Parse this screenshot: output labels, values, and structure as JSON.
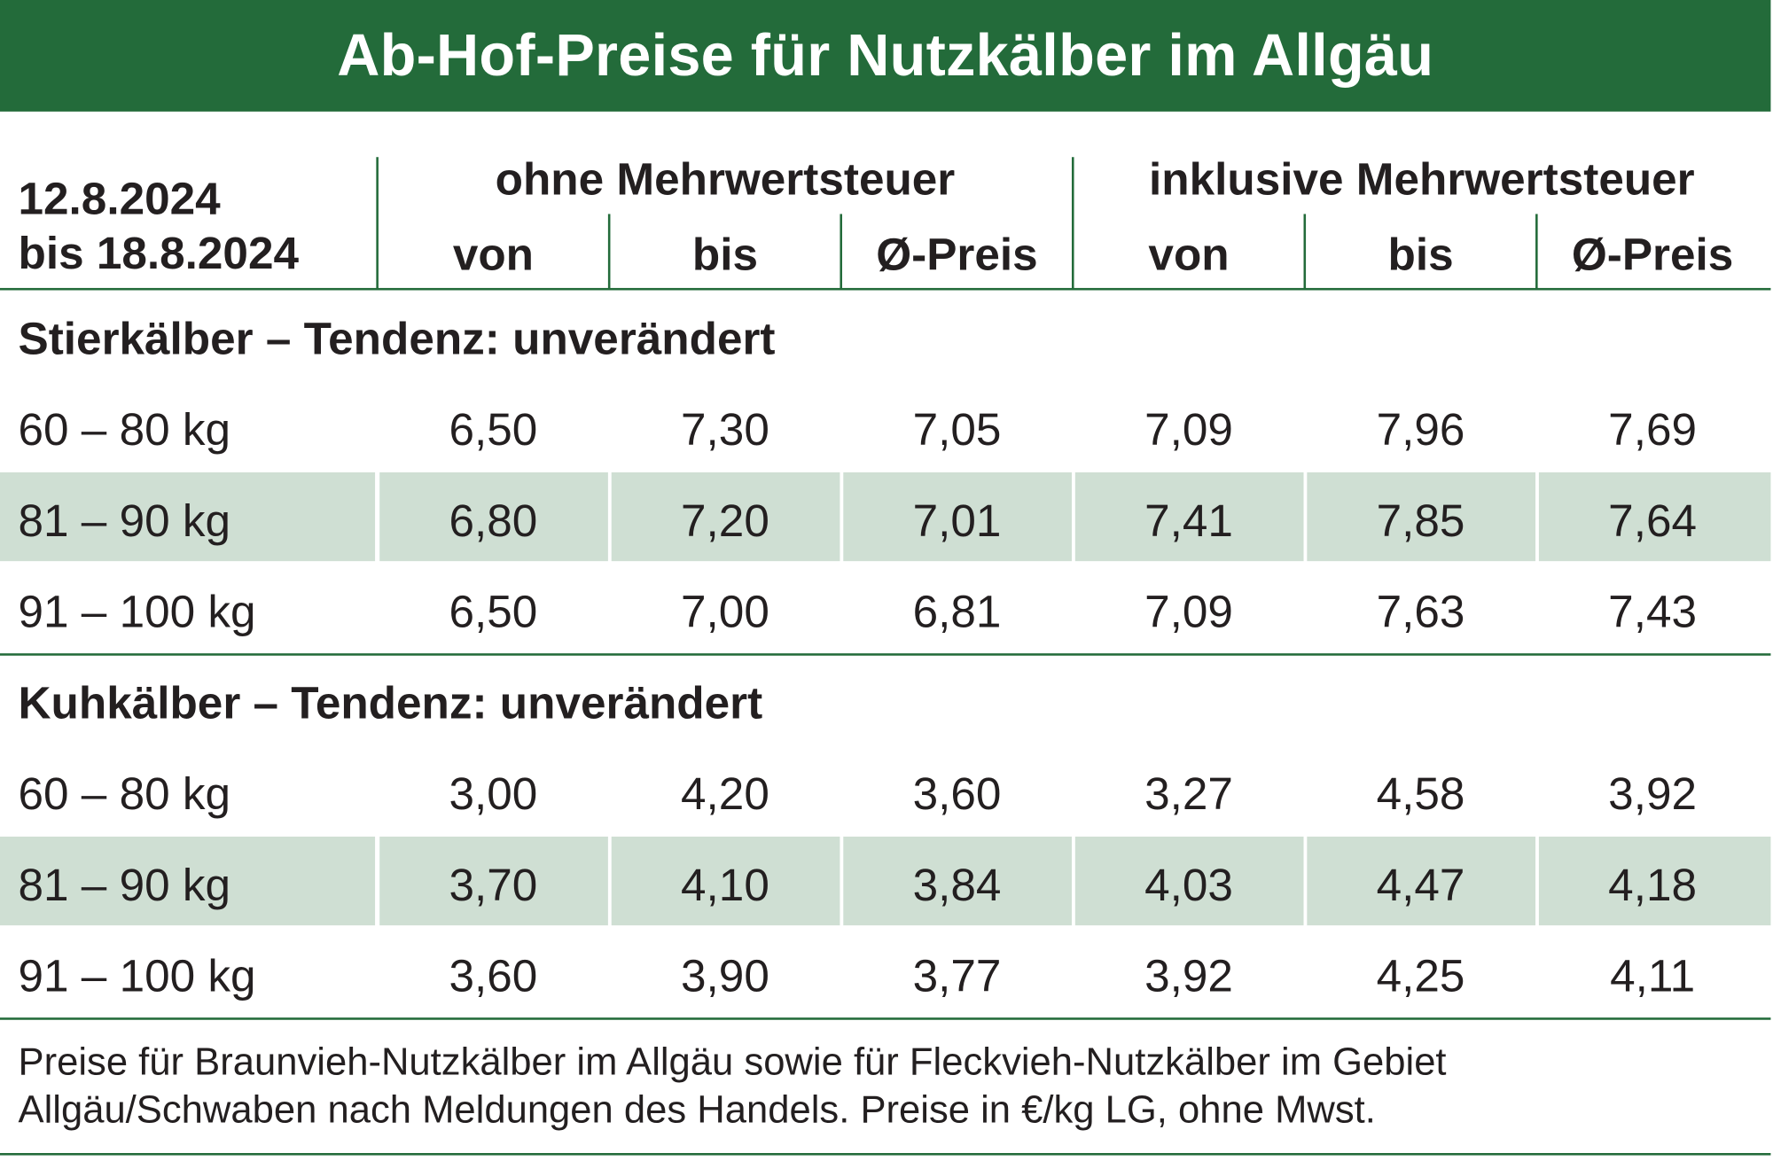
{
  "title": "Ab-Hof-Preise für Nutzkälber im Allgäu",
  "period": {
    "line1": "12.8.2024",
    "line2": "bis 18.8.2024"
  },
  "groups": {
    "without_vat": "ohne Mehrwertsteuer",
    "with_vat": "inklusive Mehrwertsteuer"
  },
  "columns": [
    "von",
    "bis",
    "Ø-Preis",
    "von",
    "bis",
    "Ø-Preis"
  ],
  "sections": [
    {
      "heading": "Stierkälber – Tendenz: unverändert",
      "rows": [
        {
          "label": "60 – 80 kg",
          "values": [
            "6,50",
            "7,30",
            "7,05",
            "7,09",
            "7,96",
            "7,69"
          ]
        },
        {
          "label": "81 – 90 kg",
          "values": [
            "6,80",
            "7,20",
            "7,01",
            "7,41",
            "7,85",
            "7,64"
          ]
        },
        {
          "label": "91 – 100 kg",
          "values": [
            "6,50",
            "7,00",
            "6,81",
            "7,09",
            "7,63",
            "7,43"
          ]
        }
      ]
    },
    {
      "heading": "Kuhkälber – Tendenz: unverändert",
      "rows": [
        {
          "label": "60 – 80 kg",
          "values": [
            "3,00",
            "4,20",
            "3,60",
            "3,27",
            "4,58",
            "3,92"
          ]
        },
        {
          "label": "81 – 90 kg",
          "values": [
            "3,70",
            "4,10",
            "3,84",
            "4,03",
            "4,47",
            "4,18"
          ]
        },
        {
          "label": "91 – 100 kg",
          "values": [
            "3,60",
            "3,90",
            "3,77",
            "3,92",
            "4,25",
            "4,11"
          ]
        }
      ]
    }
  ],
  "footnote": "Preise für Braunvieh-Nutzkälber im Allgäu sowie für Fleckvieh-Nutzkälber im Gebiet Allgäu/Schwaben nach Meldungen des Handels. Preise in €/kg LG, ohne Mwst.",
  "colors": {
    "brand_green": "#236b3a",
    "row_band": "#cfdfd3",
    "text": "#231f20"
  }
}
